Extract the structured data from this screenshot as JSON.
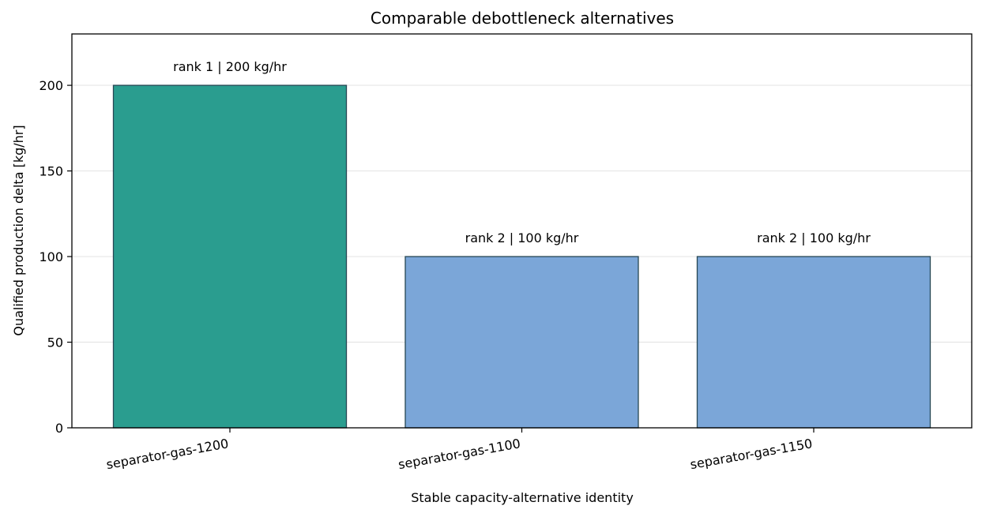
{
  "chart_data": {
    "type": "bar",
    "title": "Comparable debottleneck alternatives",
    "xlabel": "Stable capacity-alternative identity",
    "ylabel": "Qualified production delta [kg/hr]",
    "categories": [
      "separator-gas-1200",
      "separator-gas-1100",
      "separator-gas-1150"
    ],
    "values": [
      200,
      100,
      100
    ],
    "bar_labels": [
      "rank 1 | 200 kg/hr",
      "rank 2 | 100 kg/hr",
      "rank 2 | 100 kg/hr"
    ],
    "bar_colors": [
      "#2a9d8f",
      "#7ba6d8",
      "#7ba6d8"
    ],
    "edge_color": "#264653",
    "ylim": [
      0,
      230
    ],
    "yticks": [
      0,
      50,
      100,
      150,
      200
    ],
    "grid": "horizontal",
    "legend": "none"
  }
}
